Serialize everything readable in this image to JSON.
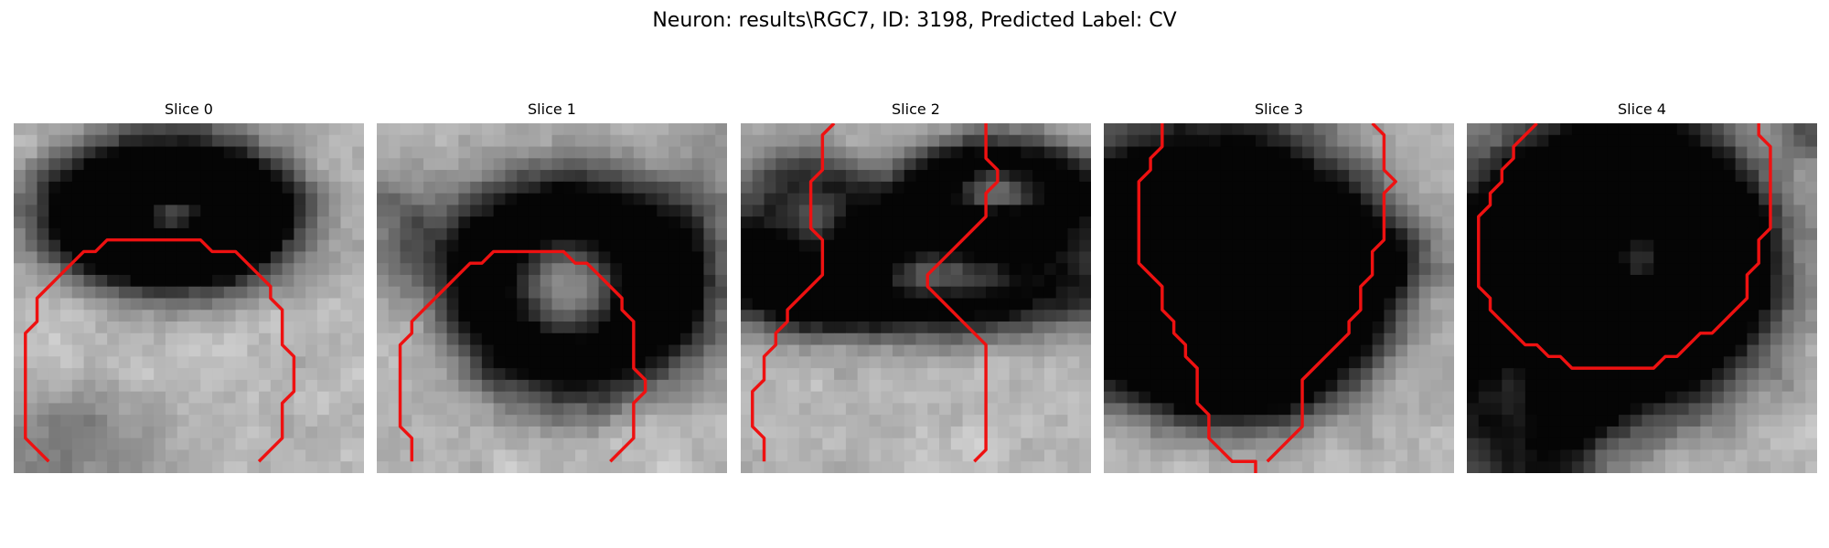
{
  "figure": {
    "title": "Neuron: results\\RGC7, ID: 3198, Predicted Label: CV"
  },
  "colors": {
    "contour": "#ee1111",
    "background": "#ffffff"
  },
  "panels": [
    {
      "title": "Slice 0"
    },
    {
      "title": "Slice 1"
    },
    {
      "title": "Slice 2"
    },
    {
      "title": "Slice 3"
    },
    {
      "title": "Slice 4"
    }
  ]
}
